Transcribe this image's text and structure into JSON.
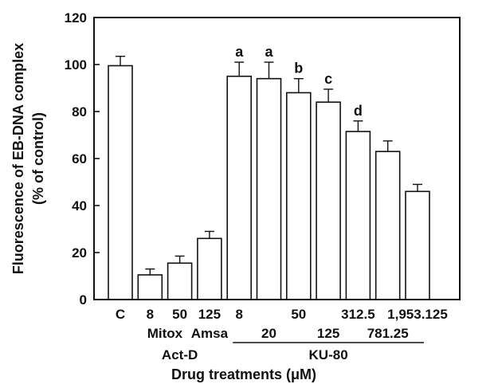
{
  "chart_data": {
    "type": "bar",
    "categories": [
      "C",
      "8",
      "50",
      "125",
      "8",
      "20",
      "50",
      "125",
      "312.5",
      "781.25",
      "1,953.125"
    ],
    "values": [
      99.5,
      10.5,
      15.5,
      26,
      95,
      94,
      88,
      84,
      71.5,
      63,
      46
    ],
    "errors": [
      4,
      2.5,
      3,
      3,
      6,
      7,
      6,
      5.5,
      4.5,
      4.5,
      3
    ],
    "significance": [
      "",
      "",
      "",
      "",
      "a",
      "a",
      "b",
      "c",
      "d",
      "",
      ""
    ],
    "x_tick_labels_row1": [
      {
        "index": 0,
        "text": "C"
      },
      {
        "index": 1,
        "text": "8"
      },
      {
        "index": 2,
        "text": "50"
      },
      {
        "index": 3,
        "text": "125"
      },
      {
        "index": 4,
        "text": "8"
      },
      {
        "index": 6,
        "text": "50"
      },
      {
        "index": 8,
        "text": "312.5"
      },
      {
        "index": 10,
        "text": "1,953.125"
      }
    ],
    "x_tick_labels_row2": [
      {
        "index": 1.5,
        "text": "Mitox"
      },
      {
        "index": 3,
        "text": "Amsa"
      },
      {
        "index": 5,
        "text": "20"
      },
      {
        "index": 7,
        "text": "125"
      },
      {
        "index": 9,
        "text": "781.25"
      }
    ],
    "groups": [
      {
        "label": "Act-D",
        "center_index": 2,
        "underline": false
      },
      {
        "label": "KU-80",
        "start_index": 4,
        "end_index": 10,
        "underline": true
      }
    ],
    "title": "",
    "ylabel_line1": "Fluorescence of EB-DNA complex",
    "ylabel_line2": "(% of control)",
    "xlabel": "Drug treatments (μM)",
    "ylim": [
      0,
      120
    ],
    "yticks": [
      0,
      20,
      40,
      60,
      80,
      100,
      120
    ],
    "grid": false,
    "legend": "none"
  }
}
